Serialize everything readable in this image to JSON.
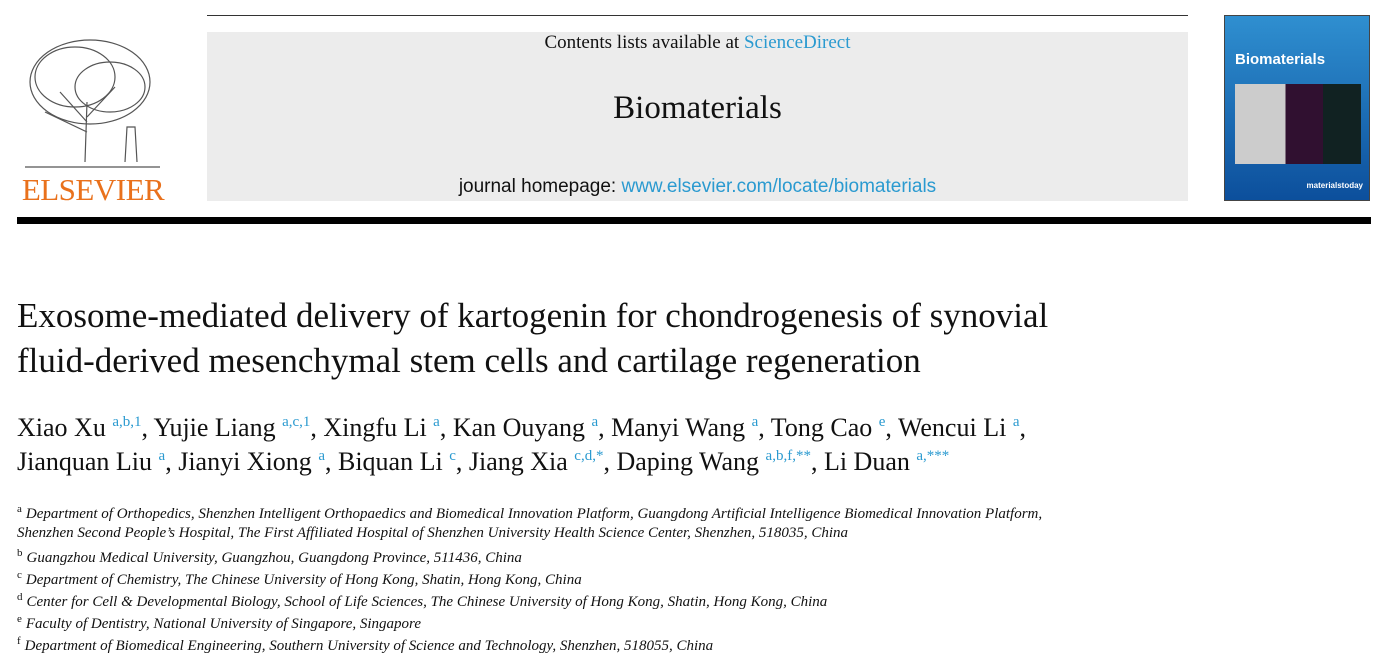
{
  "header": {
    "publisher": "ELSEVIER",
    "contents_prefix": "Contents lists available at",
    "contents_link": "ScienceDirect",
    "journal": "Biomaterials",
    "homepage_prefix": "journal homepage:",
    "homepage_link": "www.elsevier.com/locate/biomaterials",
    "cover_title": "Biomaterials",
    "cover_brand": "materialstoday"
  },
  "title_lines": [
    "Exosome-mediated delivery of kartogenin for chondrogenesis of synovial",
    "fluid-derived mesenchymal stem cells and cartilage regeneration"
  ],
  "author_lines": [
    [
      {
        "name": "Xiao Xu",
        "sup": "a,b,1",
        "punct": ","
      },
      {
        "name": "Yujie Liang",
        "sup": "a,c,1",
        "punct": ","
      },
      {
        "name": "Xingfu Li",
        "sup": "a",
        "punct": ","
      },
      {
        "name": "Kan Ouyang",
        "sup": "a",
        "punct": ","
      },
      {
        "name": "Manyi Wang",
        "sup": "a",
        "punct": ","
      },
      {
        "name": "Tong Cao",
        "sup": "e",
        "punct": ","
      },
      {
        "name": "Wencui Li",
        "sup": "a",
        "punct": ","
      }
    ],
    [
      {
        "name": "Jianquan Liu",
        "sup": "a",
        "punct": ","
      },
      {
        "name": "Jianyi Xiong",
        "sup": "a",
        "punct": ","
      },
      {
        "name": "Biquan Li",
        "sup": "c",
        "punct": ","
      },
      {
        "name": "Jiang Xia",
        "sup": "c,d,*",
        "punct": ","
      },
      {
        "name": "Daping Wang",
        "sup": "a,b,f,**",
        "punct": ","
      },
      {
        "name": "Li Duan",
        "sup": "a,***"
      }
    ]
  ],
  "affiliations": [
    {
      "mark": "a",
      "lines": [
        "Department of Orthopedics, Shenzhen Intelligent Orthopaedics and Biomedical Innovation Platform, Guangdong Artificial Intelligence Biomedical Innovation Platform,",
        "Shenzhen Second People’s Hospital, The First Affiliated Hospital of Shenzhen University Health Science Center, Shenzhen, 518035, China"
      ]
    },
    {
      "mark": "b",
      "lines": [
        "Guangzhou Medical University, Guangzhou, Guangdong Province, 511436, China"
      ]
    },
    {
      "mark": "c",
      "lines": [
        "Department of Chemistry, The Chinese University of Hong Kong, Shatin, Hong Kong, China"
      ]
    },
    {
      "mark": "d",
      "lines": [
        "Center for Cell & Developmental Biology, School of Life Sciences, The Chinese University of Hong Kong, Shatin, Hong Kong, China"
      ]
    },
    {
      "mark": "e",
      "lines": [
        "Faculty of Dentistry, National University of Singapore, Singapore"
      ]
    },
    {
      "mark": "f",
      "lines": [
        "Department of Biomedical Engineering, Southern University of Science and Technology, Shenzhen, 518055, China"
      ]
    }
  ]
}
